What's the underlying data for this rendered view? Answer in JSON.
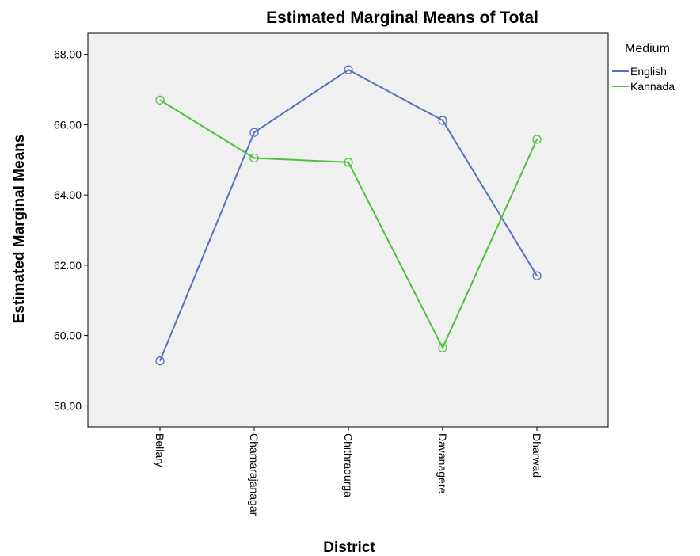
{
  "chart_data": {
    "type": "line",
    "title": "Estimated Marginal Means of Total",
    "xlabel": "District",
    "ylabel": "Estimated Marginal Means",
    "categories": [
      "Bellary",
      "Chamarajanagar",
      "Chithradurga",
      "Davanagere",
      "Dharwad"
    ],
    "series": [
      {
        "name": "English",
        "color": "#5b6fbe",
        "values": [
          59.28,
          65.78,
          67.56,
          66.12,
          61.7
        ]
      },
      {
        "name": "Kannada",
        "color": "#4cc43a",
        "values": [
          66.7,
          65.05,
          64.93,
          59.65,
          65.58
        ]
      }
    ],
    "ylim": [
      57.4,
      68.6
    ],
    "yticks": [
      58,
      60,
      62,
      64,
      66,
      68
    ],
    "ytick_labels": [
      "58.00",
      "60.00",
      "62.00",
      "64.00",
      "66.00",
      "68.00"
    ],
    "legend_title": "Medium",
    "legend_position": "right-top",
    "grid": false,
    "marker": "circle-open",
    "plot_background": "#f0f0f0"
  }
}
